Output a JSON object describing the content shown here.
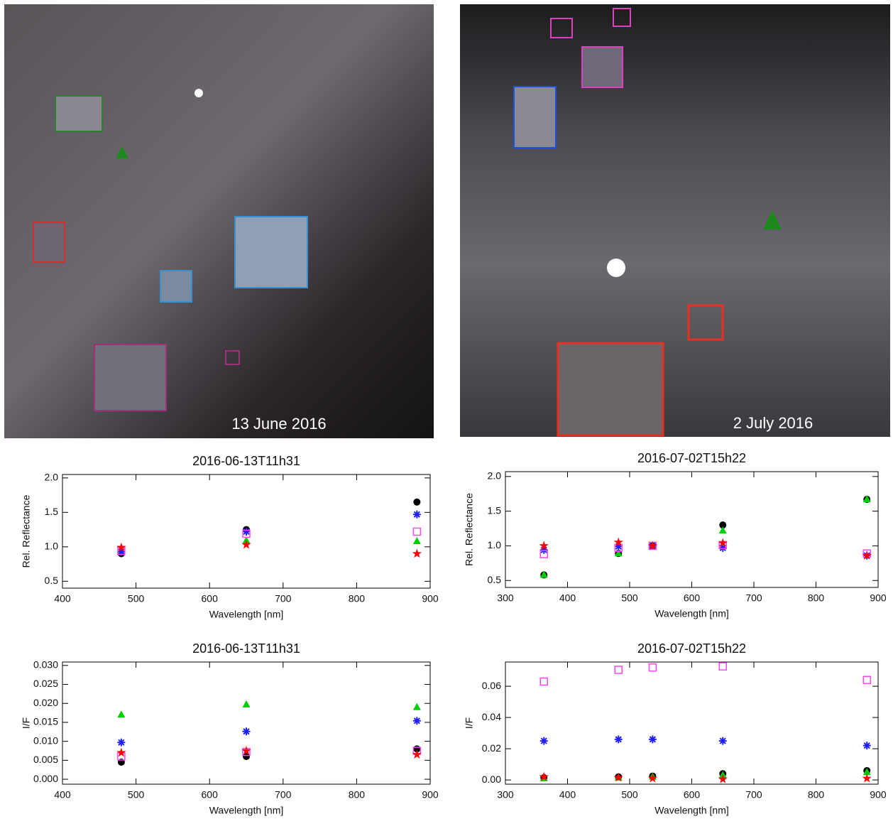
{
  "images": [
    {
      "caption": "13 June 2016"
    },
    {
      "caption": "2 July 2016"
    }
  ],
  "chart_data": [
    {
      "type": "scatter",
      "title": "2016-06-13T11h31",
      "xlabel": "Wavelength [nm]",
      "ylabel": "Rel. Reflectance",
      "xlim": [
        400,
        900
      ],
      "xticks": [
        400,
        500,
        600,
        700,
        800,
        900
      ],
      "ylim": [
        0.4,
        2.05
      ],
      "yticks": [
        {
          "value": 2,
          "label": "2.0"
        },
        1.5,
        {
          "value": 1,
          "label": "1.0"
        },
        0.5
      ],
      "x": [
        480,
        650,
        882
      ],
      "series": [
        {
          "marker": "circle",
          "color": "#000000",
          "values": [
            0.9,
            1.25,
            1.65
          ]
        },
        {
          "marker": "triangle",
          "color": "#00cc00",
          "values": [
            0.94,
            1.09,
            1.08
          ]
        },
        {
          "marker": "asterisk",
          "color": "#2020ff",
          "values": [
            0.93,
            1.22,
            1.47
          ]
        },
        {
          "marker": "square",
          "color": "#ff44ff",
          "values": [
            0.94,
            1.19,
            1.22
          ]
        },
        {
          "marker": "star",
          "color": "#ff0000",
          "values": [
            0.99,
            1.03,
            0.9
          ]
        }
      ]
    },
    {
      "type": "scatter",
      "title": "2016-07-02T15h22",
      "xlabel": "Wavelength [nm]",
      "ylabel": "Rel. Reflectance",
      "xlim": [
        300,
        900
      ],
      "xticks": [
        300,
        400,
        500,
        600,
        700,
        800,
        900
      ],
      "ylim": [
        0.4,
        2.07
      ],
      "yticks": [
        {
          "value": 2,
          "label": "2.0"
        },
        1.5,
        {
          "value": 1,
          "label": "1.0"
        },
        0.5
      ],
      "x": [
        362,
        482,
        537,
        650,
        882
      ],
      "series": [
        {
          "marker": "circle",
          "color": "#000000",
          "values": [
            0.58,
            0.89,
            1.0,
            1.3,
            1.67
          ]
        },
        {
          "marker": "triangle",
          "color": "#00cc00",
          "values": [
            0.58,
            0.89,
            1.0,
            1.22,
            1.67
          ]
        },
        {
          "marker": "asterisk",
          "color": "#2020ff",
          "values": [
            0.94,
            0.99,
            1.0,
            0.97,
            0.86
          ]
        },
        {
          "marker": "square",
          "color": "#ff44ff",
          "values": [
            0.88,
            0.97,
            1.0,
            1.01,
            0.89
          ]
        },
        {
          "marker": "star",
          "color": "#ff0000",
          "values": [
            1.0,
            1.05,
            1.0,
            1.04,
            0.86
          ]
        }
      ]
    },
    {
      "type": "scatter",
      "title": "2016-06-13T11h31",
      "xlabel": "Wavelength [nm]",
      "ylabel": "I/F",
      "xlim": [
        400,
        900
      ],
      "xticks": [
        400,
        500,
        600,
        700,
        800,
        900
      ],
      "ylim": [
        -0.0013,
        0.0309
      ],
      "yticks": [
        {
          "value": 0.03,
          "label": "0.030"
        },
        0.025,
        {
          "value": 0.02,
          "label": "0.020"
        },
        0.015,
        {
          "value": 0.01,
          "label": "0.010"
        },
        0.005,
        {
          "value": 0,
          "label": "0.000"
        }
      ],
      "x": [
        480,
        650,
        882
      ],
      "series": [
        {
          "marker": "circle",
          "color": "#000000",
          "values": [
            0.0045,
            0.006,
            0.008
          ]
        },
        {
          "marker": "triangle",
          "color": "#00cc00",
          "values": [
            0.017,
            0.0197,
            0.019
          ]
        },
        {
          "marker": "asterisk",
          "color": "#2020ff",
          "values": [
            0.0097,
            0.0126,
            0.0154
          ]
        },
        {
          "marker": "square",
          "color": "#ff44ff",
          "values": [
            0.006,
            0.0072,
            0.0075
          ]
        },
        {
          "marker": "star",
          "color": "#ff0000",
          "values": [
            0.007,
            0.0075,
            0.0065
          ]
        }
      ]
    },
    {
      "type": "scatter",
      "title": "2016-07-02T15h22",
      "xlabel": "Wavelength [nm]",
      "ylabel": "I/F",
      "xlim": [
        300,
        900
      ],
      "xticks": [
        300,
        400,
        500,
        600,
        700,
        800,
        900
      ],
      "ylim": [
        -0.0027,
        0.0755
      ],
      "yticks": [
        0.06,
        0.04,
        0.02,
        {
          "value": 0,
          "label": "0.00"
        }
      ],
      "x": [
        362,
        482,
        537,
        650,
        882
      ],
      "series": [
        {
          "marker": "circle",
          "color": "#000000",
          "values": [
            0.0015,
            0.002,
            0.0025,
            0.004,
            0.006
          ]
        },
        {
          "marker": "triangle",
          "color": "#00cc00",
          "values": [
            0.001,
            0.0015,
            0.002,
            0.003,
            0.005
          ]
        },
        {
          "marker": "asterisk",
          "color": "#2020ff",
          "values": [
            0.025,
            0.026,
            0.026,
            0.025,
            0.022
          ]
        },
        {
          "marker": "square",
          "color": "#ff44ff",
          "values": [
            0.063,
            0.0705,
            0.072,
            0.0727,
            0.064
          ]
        },
        {
          "marker": "star",
          "color": "#ff0000",
          "values": [
            0.002,
            0.0015,
            0.001,
            0.0005,
            0.001
          ]
        }
      ]
    }
  ]
}
